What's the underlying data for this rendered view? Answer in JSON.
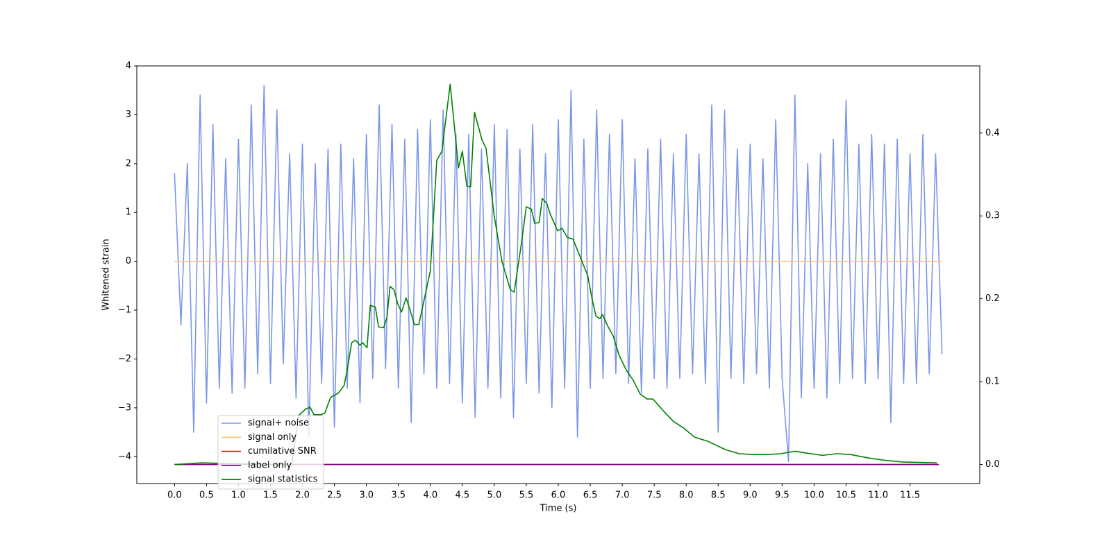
{
  "chart_data": {
    "type": "line",
    "xlabel": "Time (s)",
    "ylabel": "Whitened strain",
    "xlim": [
      -0.59,
      12.59
    ],
    "ylim": [
      -4.55,
      4
    ],
    "y2lim": [
      -0.023,
      0.481
    ],
    "xticks": [
      {
        "value": 0,
        "label": "0.0"
      },
      0.5,
      {
        "value": 1,
        "label": "1.0"
      },
      1.5,
      {
        "value": 2,
        "label": "2.0"
      },
      2.5,
      {
        "value": 3,
        "label": "3.0"
      },
      3.5,
      {
        "value": 4,
        "label": "4.0"
      },
      4.5,
      {
        "value": 5,
        "label": "5.0"
      },
      5.5,
      {
        "value": 6,
        "label": "6.0"
      },
      6.5,
      {
        "value": 7,
        "label": "7.0"
      },
      7.5,
      {
        "value": 8,
        "label": "8.0"
      },
      8.5,
      {
        "value": 9,
        "label": "9.0"
      },
      9.5,
      {
        "value": 10,
        "label": "10.0"
      },
      10.5,
      {
        "value": 11,
        "label": "11.0"
      },
      11.5
    ],
    "yticks": [
      {
        "value": -4,
        "label": "−4"
      },
      {
        "value": -3,
        "label": "−3"
      },
      {
        "value": -2,
        "label": "−2"
      },
      {
        "value": -1,
        "label": "−1"
      },
      0,
      1,
      2,
      3,
      4
    ],
    "y2ticks": [
      {
        "value": 0,
        "label": "0.0"
      },
      0.1,
      0.2,
      0.3,
      0.4
    ],
    "series": [
      {
        "name": "signal+ noise",
        "color": "#7b96e8",
        "x": [
          0,
          0.1,
          0.2,
          0.3,
          0.4,
          0.5,
          0.6,
          0.7,
          0.8,
          0.9,
          1,
          1.1,
          1.2,
          1.3,
          1.4,
          1.5,
          1.6,
          1.7,
          1.8,
          1.9,
          2,
          2.1,
          2.2,
          2.3,
          2.4,
          2.5,
          2.6,
          2.7,
          2.8,
          2.9,
          3,
          3.1,
          3.2,
          3.3,
          3.4,
          3.5,
          3.6,
          3.7,
          3.8,
          3.9,
          4,
          4.1,
          4.2,
          4.3,
          4.4,
          4.5,
          4.6,
          4.7,
          4.8,
          4.9,
          5,
          5.1,
          5.2,
          5.3,
          5.4,
          5.5,
          5.6,
          5.7,
          5.8,
          5.9,
          6,
          6.1,
          6.2,
          6.3,
          6.4,
          6.5,
          6.6,
          6.7,
          6.8,
          6.9,
          7,
          7.1,
          7.2,
          7.3,
          7.4,
          7.5,
          7.6,
          7.7,
          7.8,
          7.9,
          8,
          8.1,
          8.2,
          8.3,
          8.4,
          8.5,
          8.6,
          8.7,
          8.8,
          8.9,
          9,
          9.1,
          9.2,
          9.3,
          9.4,
          9.5,
          9.6,
          9.7,
          9.8,
          9.9,
          10,
          10.1,
          10.2,
          10.3,
          10.4,
          10.5,
          10.6,
          10.7,
          10.8,
          10.9,
          11,
          11.1,
          11.2,
          11.3,
          11.4,
          11.5,
          11.6,
          11.7,
          11.8,
          11.9,
          12
        ],
        "values": [
          1.8,
          -1.3,
          2.0,
          -3.5,
          3.4,
          -2.9,
          2.8,
          -2.6,
          2.1,
          -2.7,
          2.5,
          -2.6,
          3.2,
          -2.3,
          3.6,
          -2.5,
          3.1,
          -2.1,
          2.2,
          -2.8,
          2.4,
          -3.6,
          2.0,
          -2.5,
          2.3,
          -3.4,
          2.4,
          -2.6,
          2.1,
          -2.9,
          2.6,
          -2.4,
          3.2,
          -2.2,
          2.8,
          -2.6,
          2.5,
          -3.3,
          2.7,
          -2.3,
          2.9,
          -2.6,
          3.1,
          -2.5,
          2.6,
          -2.9,
          2.6,
          -3.2,
          2.3,
          -2.6,
          2.8,
          -2.8,
          2.7,
          -3.2,
          2.3,
          -2.5,
          2.8,
          -2.7,
          2.2,
          -3.0,
          2.9,
          -2.6,
          3.5,
          -3.6,
          2.5,
          -2.6,
          3.1,
          -2.4,
          2.6,
          -2.3,
          2.9,
          -2.5,
          2.1,
          -2.7,
          2.3,
          -2.4,
          2.5,
          -2.6,
          2.2,
          -2.4,
          2.6,
          -2.3,
          2.2,
          -2.5,
          3.2,
          -3.5,
          3.1,
          -2.4,
          2.3,
          -2.5,
          2.4,
          -2.3,
          2.1,
          -2.6,
          2.9,
          -2.4,
          -4.1,
          3.4,
          -2.8,
          2.0,
          -2.6,
          2.2,
          -2.8,
          2.5,
          -2.5,
          3.3,
          -2.4,
          2.4,
          -2.5,
          2.6,
          -2.4,
          2.4,
          -3.3,
          2.5,
          -2.5,
          2.2,
          -2.5,
          2.6,
          -2.3,
          2.2,
          -1.9
        ]
      },
      {
        "name": "signal only",
        "color": "#f7c57a",
        "x": [
          0,
          12
        ],
        "values": [
          0,
          0
        ]
      },
      {
        "name": "cumilative SNR",
        "color": "#ff0000",
        "axis": "y2",
        "x": [
          0,
          11.95
        ],
        "values": [
          0,
          0
        ]
      },
      {
        "name": "label only",
        "color": "#800080",
        "axis": "y2",
        "x": [
          0,
          11.95
        ],
        "values": [
          0,
          0
        ]
      },
      {
        "name": "signal statistics",
        "color": "#008000",
        "axis": "y2",
        "x": [
          0,
          0.42,
          0.97,
          1.51,
          1.83,
          1.94,
          2.05,
          2.12,
          2.18,
          2.29,
          2.35,
          2.44,
          2.56,
          2.65,
          2.7,
          2.77,
          2.83,
          2.9,
          2.94,
          3.01,
          3.06,
          3.14,
          3.19,
          3.27,
          3.32,
          3.37,
          3.43,
          3.49,
          3.55,
          3.62,
          3.68,
          3.75,
          3.82,
          3.94,
          4.0,
          4.1,
          4.18,
          4.31,
          4.44,
          4.5,
          4.57,
          4.63,
          4.69,
          4.81,
          4.87,
          5.0,
          5.12,
          5.25,
          5.31,
          5.42,
          5.5,
          5.58,
          5.63,
          5.7,
          5.75,
          5.82,
          5.88,
          5.99,
          6.06,
          6.14,
          6.23,
          6.35,
          6.46,
          6.53,
          6.59,
          6.65,
          6.69,
          6.78,
          6.86,
          6.95,
          7.07,
          7.17,
          7.28,
          7.39,
          7.48,
          7.64,
          7.8,
          7.96,
          8.13,
          8.34,
          8.61,
          8.83,
          9.05,
          9.27,
          9.48,
          9.7,
          9.86,
          10.13,
          10.35,
          10.57,
          10.84,
          11.11,
          11.38,
          11.92
        ],
        "values": [
          0,
          0.002,
          0.001,
          0,
          0,
          0.059,
          0.067,
          0.069,
          0.06,
          0.06,
          0.062,
          0.081,
          0.086,
          0.095,
          0.114,
          0.147,
          0.15,
          0.144,
          0.147,
          0.141,
          0.192,
          0.19,
          0.166,
          0.165,
          0.177,
          0.215,
          0.211,
          0.194,
          0.184,
          0.201,
          0.187,
          0.169,
          0.169,
          0.212,
          0.234,
          0.367,
          0.378,
          0.459,
          0.358,
          0.378,
          0.336,
          0.335,
          0.425,
          0.391,
          0.382,
          0.299,
          0.245,
          0.211,
          0.208,
          0.265,
          0.311,
          0.308,
          0.291,
          0.292,
          0.321,
          0.315,
          0.301,
          0.282,
          0.285,
          0.274,
          0.272,
          0.249,
          0.228,
          0.199,
          0.179,
          0.176,
          0.181,
          0.166,
          0.155,
          0.132,
          0.113,
          0.102,
          0.085,
          0.079,
          0.079,
          0.065,
          0.052,
          0.044,
          0.033,
          0.028,
          0.018,
          0.013,
          0.012,
          0.012,
          0.013,
          0.016,
          0.014,
          0.011,
          0.013,
          0.012,
          0.008,
          0.005,
          0.003,
          0.002
        ]
      }
    ]
  }
}
